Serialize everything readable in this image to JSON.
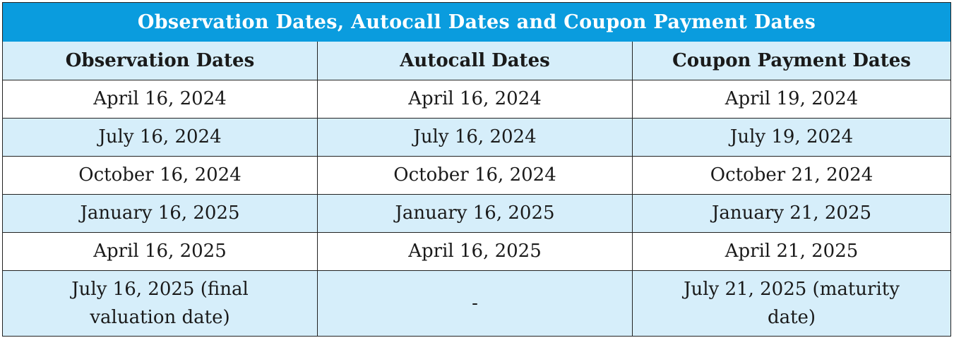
{
  "table": {
    "title": "Observation Dates, Autocall Dates and Coupon Payment Dates",
    "headers": [
      "Observation Dates",
      "Autocall Dates",
      "Coupon Payment Dates"
    ],
    "rows": [
      [
        "April 16, 2024",
        "April 16, 2024",
        "April 19, 2024"
      ],
      [
        "July 16, 2024",
        "July 16, 2024",
        "July 19, 2024"
      ],
      [
        "October 16, 2024",
        "October 16, 2024",
        "October 21, 2024"
      ],
      [
        "January 16, 2025",
        "January 16, 2025",
        "January 21, 2025"
      ],
      [
        "April 16, 2025",
        "April 16, 2025",
        "April 21, 2025"
      ],
      [
        "July 16, 2025 (final valuation date)",
        "-",
        "July 21, 2025 (maturity date)"
      ]
    ]
  },
  "colors": {
    "title_background": "#0a9cde",
    "title_text": "#ffffff",
    "header_background": "#d6eefa",
    "stripe_background": "#d6eefa",
    "row_background": "#ffffff",
    "border": "#222222"
  }
}
